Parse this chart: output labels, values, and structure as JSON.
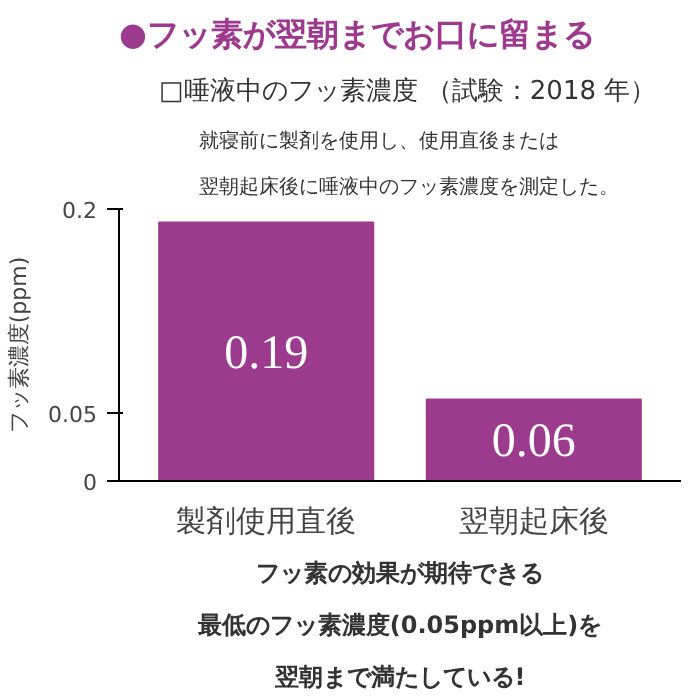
{
  "chart_data": {
    "type": "bar",
    "title": "●フッ素が翌朝までお口に留まる",
    "subtitle": "□唾液中のフッ素濃度",
    "annotations": [
      "（試験：2018 年）",
      "就寝前に製剤を使用し、使用直後または",
      "翌朝起床後に唾液中のフッ素濃度を測定した。",
      "フッ素の効果が期待できる",
      "最低のフッ素濃度(0.05ppm以上)を",
      "翌朝まで満たしている!"
    ],
    "ylabel": "フッ素濃度(ppm)",
    "categories": [
      "製剤使用直後",
      "翌朝起床後"
    ],
    "values": [
      0.19,
      0.06
    ],
    "color": "#9c3a8e",
    "ylim": [
      0,
      0.2
    ],
    "yticks": [
      0,
      0.05,
      0.2
    ],
    "data_labels": true,
    "grid": false
  }
}
